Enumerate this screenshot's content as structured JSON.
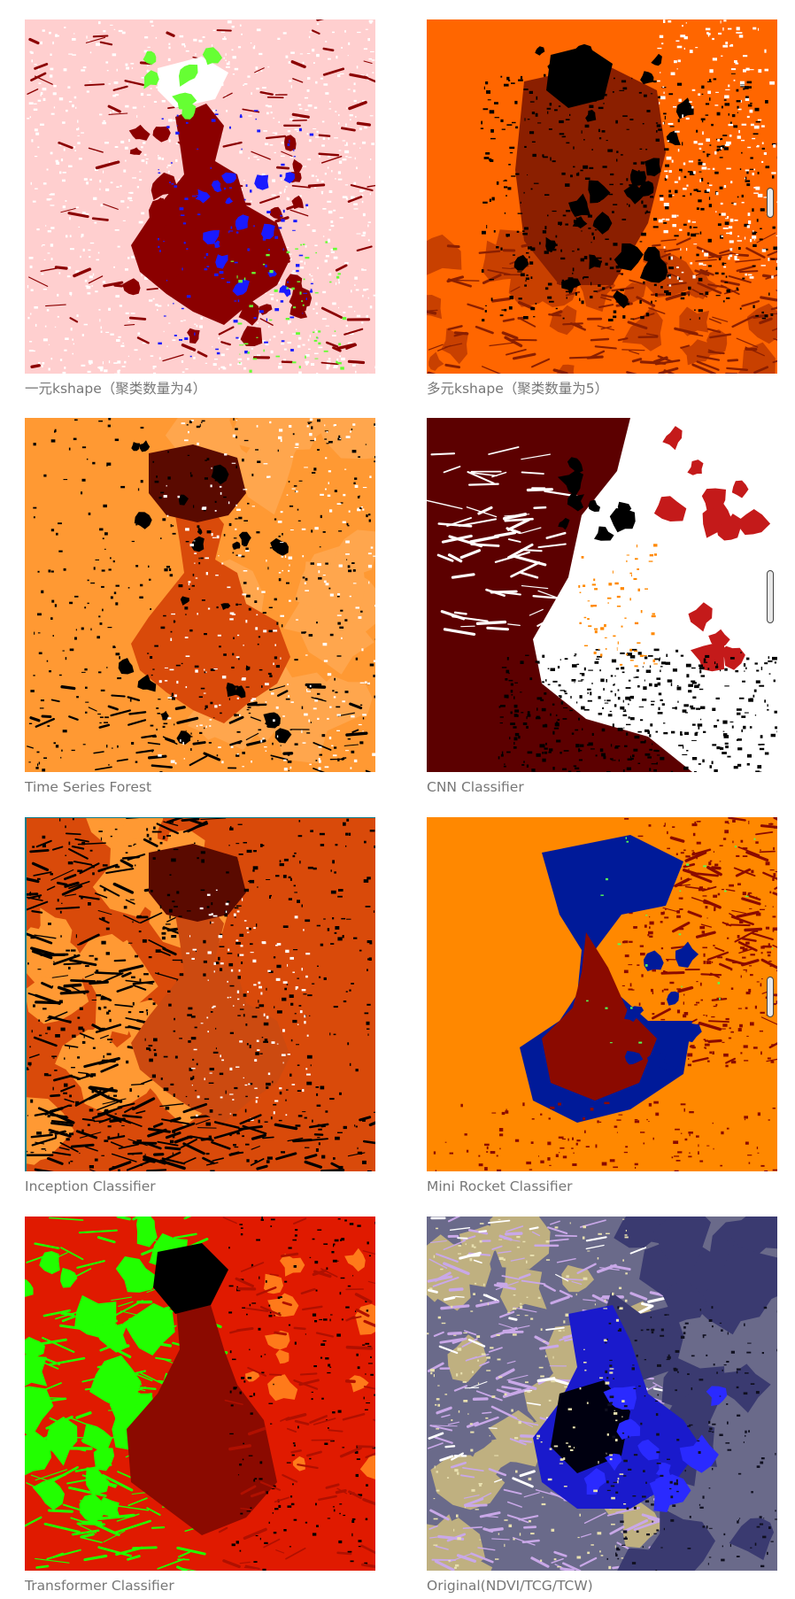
{
  "panels": [
    {
      "caption": "一元kshape（聚类数量为4）",
      "palette": {
        "background": "#ffcfcf",
        "primary": "#8b0000",
        "secondary": "#ffffff",
        "accent1": "#1a1aff",
        "accent2": "#66ff33"
      },
      "style": "kshape1"
    },
    {
      "caption": "多元kshape（聚类数量为5）",
      "palette": {
        "background": "#ff6600",
        "primary": "#8b1f00",
        "secondary": "#000000",
        "accent1": "#ffffff",
        "accent2": "#c84000"
      },
      "style": "kshape2"
    },
    {
      "caption": "Time Series Forest",
      "palette": {
        "background": "#ff9933",
        "primary": "#d94a0a",
        "secondary": "#000000",
        "accent1": "#ffffff",
        "accent2": "#5a0a00"
      },
      "style": "tsf"
    },
    {
      "caption": "CNN Classifier",
      "palette": {
        "background": "#ffffff",
        "primary": "#5c0000",
        "secondary": "#000000",
        "accent1": "#c41a1a",
        "accent2": "#ff8800"
      },
      "style": "cnn"
    },
    {
      "caption": "Inception Classifier",
      "palette": {
        "background": "#d94a0a",
        "primary": "#cc4a10",
        "secondary": "#000000",
        "accent1": "#ff9933",
        "accent2": "#ffffff"
      },
      "style": "inception"
    },
    {
      "caption": "Mini Rocket Classifier",
      "palette": {
        "background": "#ff8800",
        "primary": "#8b0a00",
        "secondary": "#001a99",
        "accent1": "#ffffff",
        "accent2": "#55ff55"
      },
      "style": "minirocket"
    },
    {
      "caption": "Transformer Classifier",
      "palette": {
        "background": "#e01a00",
        "primary": "#8b0a00",
        "secondary": "#22ff00",
        "accent1": "#000000",
        "accent2": "#ff7a1a"
      },
      "style": "transformer"
    },
    {
      "caption": "Original(NDVI/TCG/TCW)",
      "palette": {
        "background": "#6a6a8a",
        "primary": "#1a1acc",
        "secondary": "#bfb080",
        "accent1": "#c9a8e8",
        "accent2": "#000010"
      },
      "style": "original"
    }
  ]
}
